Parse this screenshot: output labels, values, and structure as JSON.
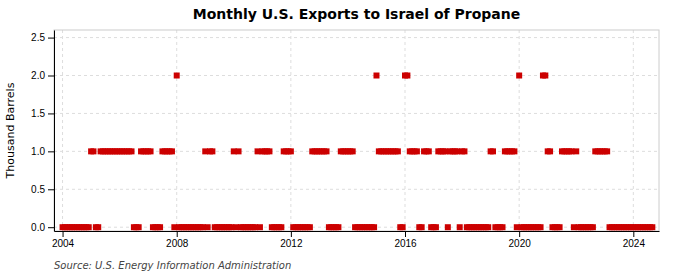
{
  "chart_data": {
    "type": "scatter",
    "title": "Monthly U.S. Exports to Israel of Propane",
    "ylabel": "Thousand Barrels",
    "annotation": "Source: U.S. Energy Information Administration",
    "color": "#cc0000",
    "marker": "square",
    "grid": true,
    "xlim": [
      2003.7,
      2024.9
    ],
    "ylim": [
      -0.05,
      2.6
    ],
    "xticks": [
      2004,
      2008,
      2012,
      2016,
      2020,
      2024
    ],
    "yticks": [
      {
        "value": 0,
        "label": "0.0"
      },
      0.5,
      {
        "value": 1,
        "label": "1.0"
      },
      1.5,
      {
        "value": 2,
        "label": "2.0"
      },
      2.5
    ],
    "x": [
      2004,
      2004.0833333333333,
      2004.1666666666667,
      2004.25,
      2004.3333333333333,
      2004.4166666666667,
      2004.5,
      2004.5833333333333,
      2004.6666666666667,
      2004.75,
      2004.8333333333333,
      2004.9166666666667,
      2005,
      2005.0833333333333,
      2005.1666666666667,
      2005.25,
      2005.3333333333333,
      2005.4166666666667,
      2005.5,
      2005.5833333333333,
      2005.6666666666667,
      2005.75,
      2005.8333333333333,
      2005.9166666666667,
      2006,
      2006.0833333333333,
      2006.1666666666667,
      2006.25,
      2006.3333333333333,
      2006.4166666666667,
      2006.5,
      2006.5833333333333,
      2006.6666666666667,
      2006.75,
      2006.8333333333333,
      2006.9166666666667,
      2007,
      2007.0833333333333,
      2007.1666666666667,
      2007.25,
      2007.3333333333333,
      2007.4166666666667,
      2007.5,
      2007.5833333333333,
      2007.6666666666667,
      2007.75,
      2007.8333333333333,
      2007.9166666666667,
      2008,
      2008.0833333333333,
      2008.1666666666667,
      2008.25,
      2008.3333333333333,
      2008.4166666666667,
      2008.5,
      2008.5833333333333,
      2008.6666666666667,
      2008.75,
      2008.8333333333333,
      2008.9166666666667,
      2009,
      2009.0833333333333,
      2009.1666666666667,
      2009.25,
      2009.3333333333333,
      2009.4166666666667,
      2009.5,
      2009.5833333333333,
      2009.6666666666667,
      2009.75,
      2009.8333333333333,
      2009.9166666666667,
      2010,
      2010.0833333333333,
      2010.1666666666667,
      2010.25,
      2010.3333333333333,
      2010.4166666666667,
      2010.5,
      2010.5833333333333,
      2010.6666666666667,
      2010.75,
      2010.8333333333333,
      2010.9166666666667,
      2011,
      2011.0833333333333,
      2011.1666666666667,
      2011.25,
      2011.3333333333333,
      2011.4166666666667,
      2011.5,
      2011.5833333333333,
      2011.6666666666667,
      2011.75,
      2011.8333333333333,
      2011.9166666666667,
      2012,
      2012.0833333333333,
      2012.1666666666667,
      2012.25,
      2012.3333333333333,
      2012.4166666666667,
      2012.5,
      2012.5833333333333,
      2012.6666666666667,
      2012.75,
      2012.8333333333333,
      2012.9166666666667,
      2013,
      2013.0833333333333,
      2013.1666666666667,
      2013.25,
      2013.3333333333333,
      2013.4166666666667,
      2013.5,
      2013.5833333333333,
      2013.6666666666667,
      2013.75,
      2013.8333333333333,
      2013.9166666666667,
      2014,
      2014.0833333333333,
      2014.1666666666667,
      2014.25,
      2014.3333333333333,
      2014.4166666666667,
      2014.5,
      2014.5833333333333,
      2014.6666666666667,
      2014.75,
      2014.8333333333333,
      2014.9166666666667,
      2015,
      2015.0833333333333,
      2015.1666666666667,
      2015.25,
      2015.3333333333333,
      2015.4166666666667,
      2015.5,
      2015.5833333333333,
      2015.6666666666667,
      2015.75,
      2015.8333333333333,
      2015.9166666666667,
      2016,
      2016.0833333333333,
      2016.1666666666667,
      2016.25,
      2016.3333333333333,
      2016.4166666666667,
      2016.5,
      2016.5833333333333,
      2016.6666666666667,
      2016.75,
      2016.8333333333333,
      2016.9166666666667,
      2017,
      2017.0833333333333,
      2017.1666666666667,
      2017.25,
      2017.3333333333333,
      2017.4166666666667,
      2017.5,
      2017.5833333333333,
      2017.6666666666667,
      2017.75,
      2017.8333333333333,
      2017.9166666666667,
      2018,
      2018.0833333333333,
      2018.1666666666667,
      2018.25,
      2018.3333333333333,
      2018.4166666666667,
      2018.5,
      2018.5833333333333,
      2018.6666666666667,
      2018.75,
      2018.8333333333333,
      2018.9166666666667,
      2019,
      2019.0833333333333,
      2019.1666666666667,
      2019.25,
      2019.3333333333333,
      2019.4166666666667,
      2019.5,
      2019.5833333333333,
      2019.6666666666667,
      2019.75,
      2019.8333333333333,
      2019.9166666666667,
      2020,
      2020.0833333333333,
      2020.1666666666667,
      2020.25,
      2020.3333333333333,
      2020.4166666666667,
      2020.5,
      2020.5833333333333,
      2020.6666666666667,
      2020.75,
      2020.8333333333333,
      2020.9166666666667,
      2021,
      2021.0833333333333,
      2021.1666666666667,
      2021.25,
      2021.3333333333333,
      2021.4166666666667,
      2021.5,
      2021.5833333333333,
      2021.6666666666667,
      2021.75,
      2021.8333333333333,
      2021.9166666666667,
      2022,
      2022.0833333333333,
      2022.1666666666667,
      2022.25,
      2022.3333333333333,
      2022.4166666666667,
      2022.5,
      2022.5833333333333,
      2022.6666666666667,
      2022.75,
      2022.8333333333333,
      2022.9166666666667,
      2023,
      2023.0833333333333,
      2023.1666666666667,
      2023.25,
      2023.3333333333333,
      2023.4166666666667,
      2023.5,
      2023.5833333333333,
      2023.6666666666667,
      2023.75,
      2023.8333333333333,
      2023.9166666666667,
      2024,
      2024.0833333333333,
      2024.1666666666667,
      2024.25,
      2024.3333333333333,
      2024.4166666666667,
      2024.5,
      2024.5833333333333,
      2024.6666666666667
    ],
    "values": [
      0,
      0,
      0,
      0,
      0,
      0,
      0,
      0,
      0,
      0,
      0,
      0,
      1,
      1,
      0,
      0,
      1,
      1,
      1,
      1,
      1,
      1,
      1,
      1,
      1,
      1,
      1,
      1,
      1,
      1,
      0,
      0,
      0,
      1,
      1,
      1,
      1,
      1,
      0,
      0,
      0,
      0,
      1,
      1,
      1,
      1,
      1,
      0,
      2,
      0,
      0,
      0,
      0,
      0,
      0,
      0,
      0,
      0,
      0,
      0,
      1,
      0,
      1,
      1,
      0,
      0,
      0,
      0,
      0,
      0,
      0,
      0,
      1,
      0,
      1,
      0,
      0,
      0,
      0,
      0,
      0,
      0,
      1,
      0,
      1,
      1,
      1,
      1,
      0,
      0,
      0,
      0,
      0,
      1,
      1,
      1,
      1,
      0,
      0,
      0,
      0,
      0,
      0,
      0,
      0,
      1,
      1,
      1,
      1,
      1,
      1,
      1,
      0,
      0,
      0,
      0,
      0,
      1,
      1,
      1,
      1,
      1,
      1,
      0,
      0,
      0,
      0,
      0,
      0,
      0,
      0,
      0,
      2,
      1,
      1,
      1,
      1,
      1,
      1,
      1,
      1,
      1,
      0,
      0,
      2,
      2,
      1,
      1,
      1,
      1,
      0,
      0,
      1,
      1,
      1,
      0,
      0,
      0,
      1,
      1,
      1,
      1,
      0,
      1,
      1,
      1,
      1,
      0,
      1,
      1,
      0,
      0,
      0,
      0,
      0,
      0,
      0,
      0,
      0,
      0,
      1,
      1,
      0,
      0,
      0,
      0,
      1,
      1,
      1,
      1,
      1,
      0,
      2,
      0,
      0,
      0,
      0,
      0,
      0,
      0,
      0,
      0,
      2,
      2,
      1,
      1,
      0,
      0,
      0,
      0,
      1,
      1,
      1,
      1,
      1,
      0,
      1,
      0,
      0,
      0,
      0,
      0,
      0,
      0,
      1,
      1,
      1,
      1,
      1,
      1,
      0,
      0,
      0,
      0,
      0,
      0,
      0,
      0,
      0,
      0,
      0,
      0,
      0,
      0,
      0,
      0,
      0,
      0,
      0
    ]
  }
}
